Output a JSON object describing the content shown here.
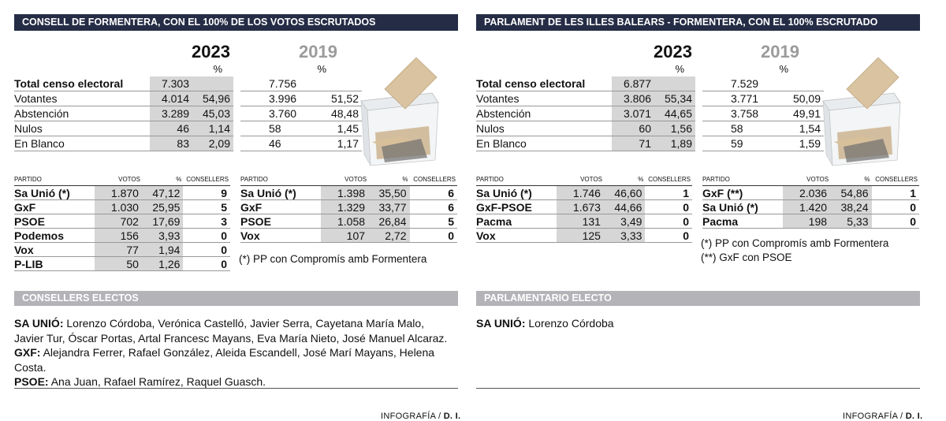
{
  "left": {
    "header": "CONSELL DE FORMENTERA, CON EL 100% DE LOS VOTOS ESCRUTADOS",
    "year_current": "2023",
    "year_previous": "2019",
    "pct_symbol": "%",
    "census": {
      "rows": [
        {
          "label": "Total censo electoral",
          "v2023": "7.303",
          "p2023": "",
          "v2019": "7.756",
          "p2019": ""
        },
        {
          "label": "Votantes",
          "v2023": "4.014",
          "p2023": "54,96",
          "v2019": "3.996",
          "p2019": "51,52"
        },
        {
          "label": "Abstención",
          "v2023": "3.289",
          "p2023": "45,03",
          "v2019": "3.760",
          "p2019": "48,48"
        },
        {
          "label": "Nulos",
          "v2023": "46",
          "p2023": "1,14",
          "v2019": "58",
          "p2019": "1,45"
        },
        {
          "label": "En Blanco",
          "v2023": "83",
          "p2023": "2,09",
          "v2019": "46",
          "p2019": "1,17"
        }
      ]
    },
    "col_headers": {
      "partido": "PARTIDO",
      "votos": "VOTOS",
      "pct": "%",
      "seats": "CONSELLERS"
    },
    "parties2023": [
      {
        "name": "Sa Unió (*)",
        "votes": "1.870",
        "pct": "47,12",
        "seats": "9"
      },
      {
        "name": "GxF",
        "votes": "1.030",
        "pct": "25,95",
        "seats": "5"
      },
      {
        "name": "PSOE",
        "votes": "702",
        "pct": "17,69",
        "seats": "3"
      },
      {
        "name": "Podemos",
        "votes": "156",
        "pct": "3,93",
        "seats": "0"
      },
      {
        "name": "Vox",
        "votes": "77",
        "pct": "1,94",
        "seats": "0"
      },
      {
        "name": "P-LIB",
        "votes": "50",
        "pct": "1,26",
        "seats": "0"
      }
    ],
    "parties2019": [
      {
        "name": "Sa Unió (*)",
        "votes": "1.398",
        "pct": "35,50",
        "seats": "6"
      },
      {
        "name": "GxF",
        "votes": "1.329",
        "pct": "33,77",
        "seats": "6"
      },
      {
        "name": "PSOE",
        "votes": "1.058",
        "pct": "26,84",
        "seats": "5"
      },
      {
        "name": "Vox",
        "votes": "107",
        "pct": "2,72",
        "seats": "0"
      }
    ],
    "note": "(*) PP con Compromís amb Formentera",
    "electos_header": "CONSELLERS ELECTOS",
    "electos": [
      {
        "party": "SA UNIÓ:",
        "names": " Lorenzo Córdoba, Verónica Castelló, Javier Serra, Cayetana María Malo, Javier Tur, Óscar Portas, Artal Francesc Mayans, Eva María Nieto, José Manuel Alcaraz."
      },
      {
        "party": "GXF:",
        "names": " Alejandra Ferrer, Rafael González, Aleida Escandell, José Marí Mayans, Helena Costa."
      },
      {
        "party": "PSOE:",
        "names": " Ana Juan, Rafael Ramírez, Raquel Guasch."
      }
    ],
    "credit_prefix": "INFOGRAFÍA / ",
    "credit_suffix": "D. I."
  },
  "right": {
    "header": "PARLAMENT DE LES ILLES BALEARS - FORMENTERA, CON EL 100% ESCRUTADO",
    "year_current": "2023",
    "year_previous": "2019",
    "pct_symbol": "%",
    "census": {
      "rows": [
        {
          "label": "Total censo electoral",
          "v2023": "6.877",
          "p2023": "",
          "v2019": "7.529",
          "p2019": ""
        },
        {
          "label": "Votantes",
          "v2023": "3.806",
          "p2023": "55,34",
          "v2019": "3.771",
          "p2019": "50,09"
        },
        {
          "label": "Abstención",
          "v2023": "3.071",
          "p2023": "44,65",
          "v2019": "3.758",
          "p2019": "49,91"
        },
        {
          "label": "Nulos",
          "v2023": "60",
          "p2023": "1,56",
          "v2019": "58",
          "p2019": "1,54"
        },
        {
          "label": "En Blanco",
          "v2023": "71",
          "p2023": "1,89",
          "v2019": "59",
          "p2019": "1,59"
        }
      ]
    },
    "col_headers": {
      "partido": "PARTIDO",
      "votos": "VOTOS",
      "pct": "%",
      "seats": "CONSELLERS"
    },
    "parties2023": [
      {
        "name": "Sa Unió (*)",
        "votes": "1.746",
        "pct": "46,60",
        "seats": "1"
      },
      {
        "name": "GxF-PSOE",
        "votes": "1.673",
        "pct": "44,66",
        "seats": "0"
      },
      {
        "name": "Pacma",
        "votes": "131",
        "pct": "3,49",
        "seats": "0"
      },
      {
        "name": "Vox",
        "votes": "125",
        "pct": "3,33",
        "seats": "0"
      }
    ],
    "parties2019": [
      {
        "name": "GxF (**)",
        "votes": "2.036",
        "pct": "54,86",
        "seats": "1"
      },
      {
        "name": "Sa Unió (*)",
        "votes": "1.420",
        "pct": "38,24",
        "seats": "0"
      },
      {
        "name": "Pacma",
        "votes": "198",
        "pct": "5,33",
        "seats": "0"
      }
    ],
    "note1": "(*) PP con Compromís amb Formentera",
    "note2": "(**) GxF con PSOE",
    "electos_header": "PARLAMENTARIO ELECTO",
    "electos": [
      {
        "party": "SA UNIÓ:",
        "names": " Lorenzo Córdoba"
      }
    ],
    "credit_prefix": "INFOGRAFÍA / ",
    "credit_suffix": "D. I."
  }
}
